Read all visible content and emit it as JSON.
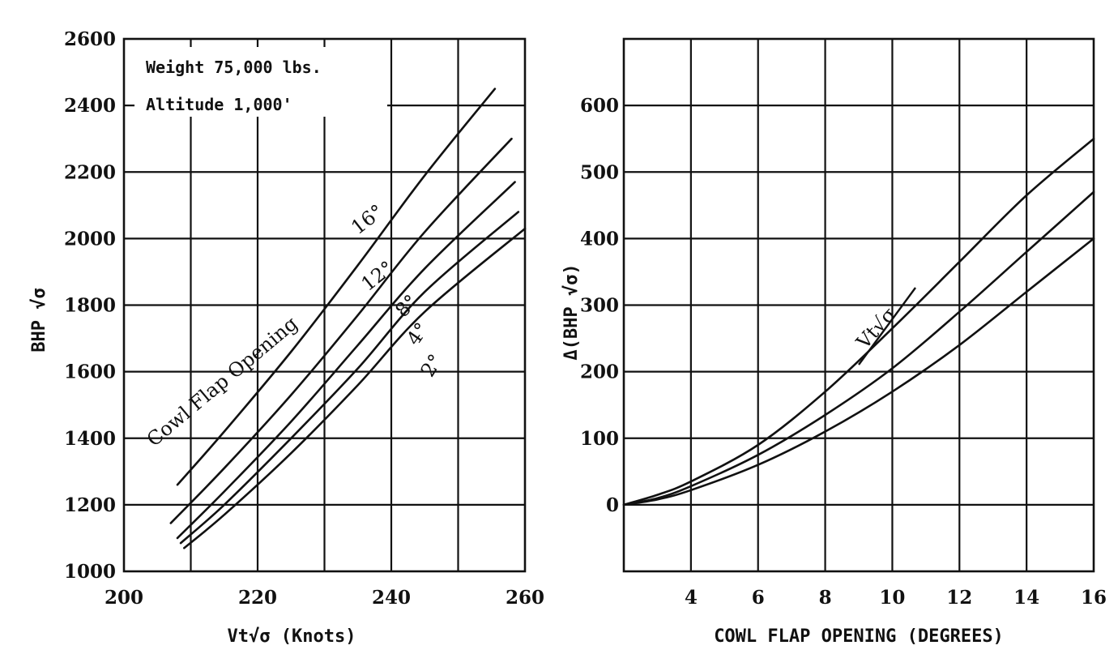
{
  "chart_data": [
    {
      "type": "line",
      "xlabel": "Vt√σ (Knots)",
      "ylabel": "BHP √σ",
      "xlim": [
        200,
        260
      ],
      "ylim": [
        1000,
        2600
      ],
      "grid": true,
      "x_ticks": [
        "200",
        "220",
        "240",
        "260"
      ],
      "y_ticks": [
        "1000",
        "1200",
        "1400",
        "1600",
        "1800",
        "2000",
        "2200",
        "2400",
        "2600"
      ],
      "annotations": [
        "Weight  75,000 lbs.",
        "Altitude  1,000'",
        "Cowl Flap Opening"
      ],
      "series": [
        {
          "name": "16°",
          "x": [
            208,
            215,
            225,
            235,
            245,
            255.5
          ],
          "y": [
            1260,
            1420,
            1660,
            1920,
            2190,
            2450
          ]
        },
        {
          "name": "12°",
          "x": [
            207,
            215,
            225,
            235,
            245,
            258
          ],
          "y": [
            1145,
            1310,
            1530,
            1770,
            2020,
            2300
          ]
        },
        {
          "name": "8°",
          "x": [
            208,
            215,
            225,
            235,
            245,
            258.5
          ],
          "y": [
            1100,
            1240,
            1450,
            1680,
            1910,
            2170
          ]
        },
        {
          "name": "4°",
          "x": [
            208.5,
            215,
            225,
            235,
            245,
            259
          ],
          "y": [
            1085,
            1200,
            1400,
            1610,
            1840,
            2080
          ]
        },
        {
          "name": "2°",
          "x": [
            209,
            215,
            225,
            235,
            245,
            260
          ],
          "y": [
            1070,
            1170,
            1355,
            1560,
            1780,
            2030
          ]
        }
      ]
    },
    {
      "type": "line",
      "xlabel": "COWL FLAP OPENING   (DEGREES)",
      "ylabel": "Δ(BHP √σ)",
      "xlim": [
        2,
        16
      ],
      "ylim": [
        -100,
        700
      ],
      "grid": true,
      "x_ticks": [
        "4",
        "6",
        "8",
        "10",
        "12",
        "14",
        "16"
      ],
      "y_ticks": [
        "0",
        "100",
        "200",
        "300",
        "400",
        "500",
        "600"
      ],
      "annotations": [
        "Vt√σ"
      ],
      "series": [
        {
          "x": [
            2,
            3,
            4,
            6,
            8,
            10,
            12,
            14,
            16
          ],
          "y": [
            0,
            15,
            35,
            90,
            170,
            265,
            365,
            465,
            550
          ]
        },
        {
          "x": [
            2,
            3,
            4,
            6,
            8,
            10,
            12,
            14,
            16
          ],
          "y": [
            0,
            10,
            28,
            75,
            135,
            205,
            290,
            380,
            470
          ]
        },
        {
          "x": [
            2,
            3,
            4,
            6,
            8,
            10,
            12,
            14,
            16
          ],
          "y": [
            0,
            8,
            22,
            60,
            110,
            170,
            240,
            320,
            400
          ]
        }
      ]
    }
  ]
}
